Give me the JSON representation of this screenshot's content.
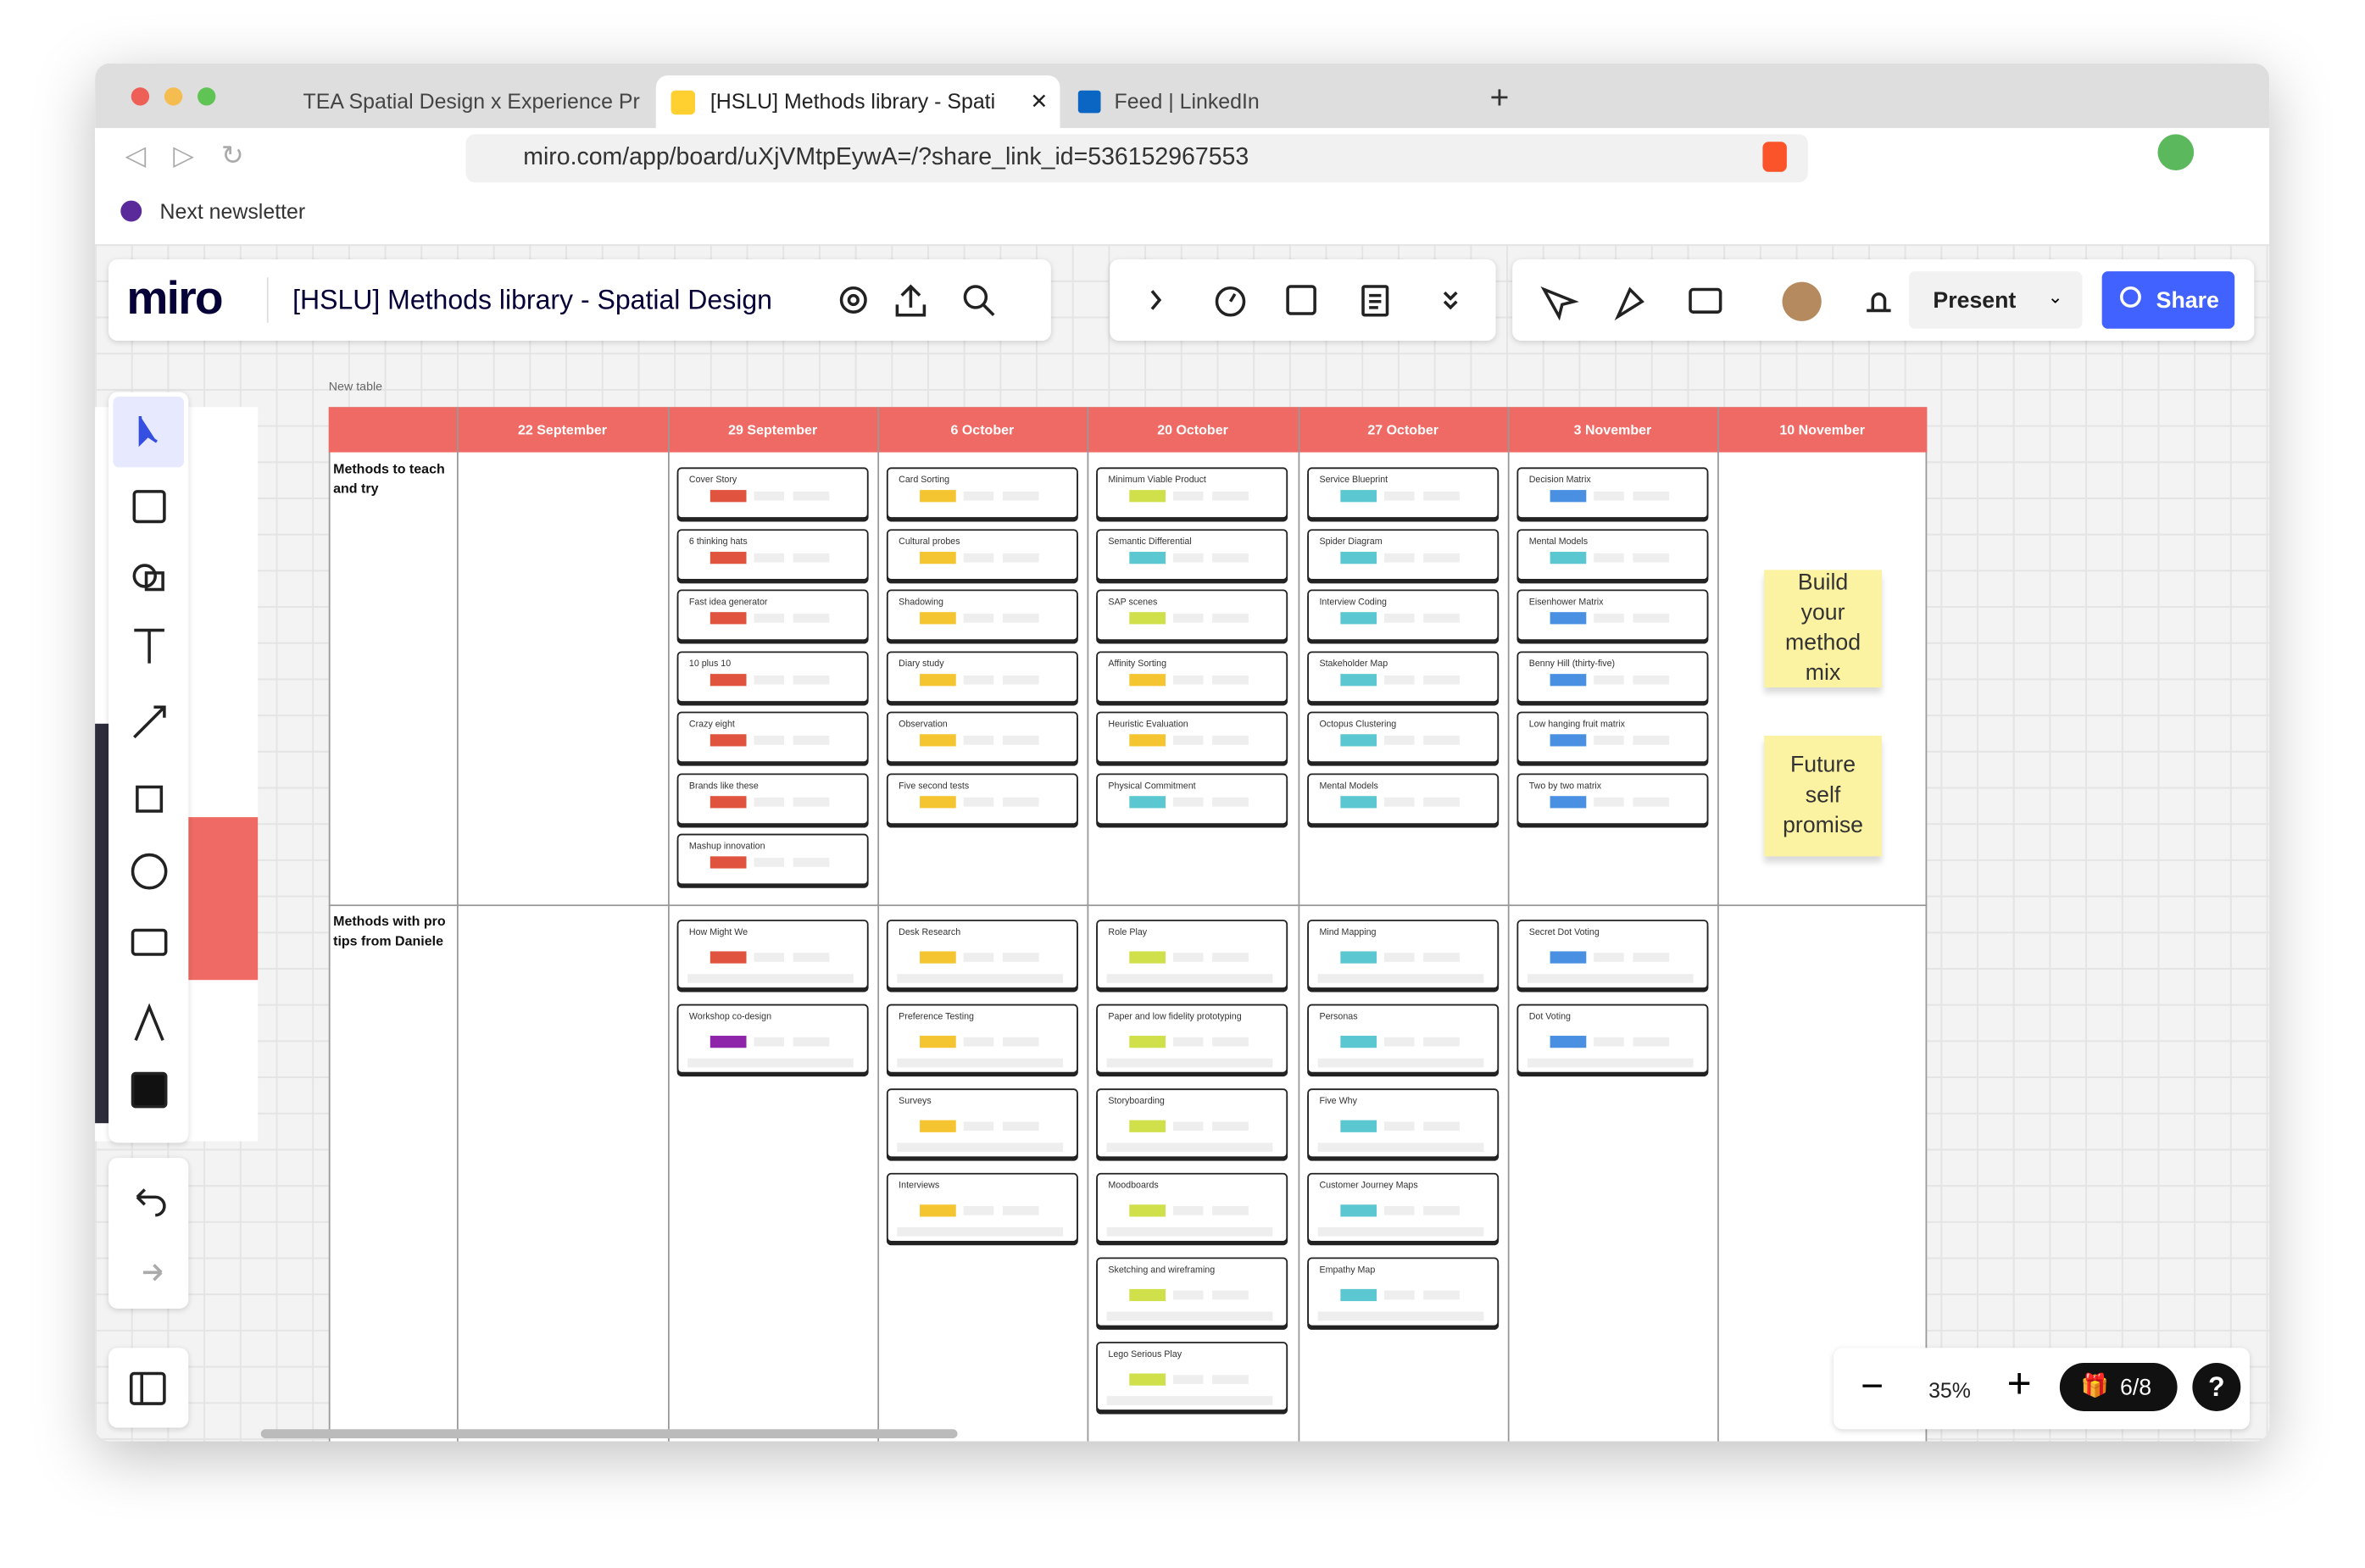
{
  "browser": {
    "tabs": [
      "TEA Spatial Design x Experience Pr",
      "[HSLU] Methods library - Spati",
      "Feed | LinkedIn"
    ],
    "url": "miro.com/app/board/uXjVMtpEywA=/?share_link_id=536152967553",
    "bookmark": "Next newsletter"
  },
  "toolbar": {
    "logo": "miro",
    "board_title": "[HSLU] Methods library - Spatial Design",
    "present": "Present",
    "share": "Share"
  },
  "table": {
    "caption": "New table",
    "columns": [
      "22 September",
      "29 September",
      "6 October",
      "20 October",
      "27 October",
      "3 November",
      "10 November"
    ],
    "rows": [
      {
        "label": "Methods to teach and try",
        "cells": [
          [],
          [
            {
              "label": "Cover Story",
              "color": "#e0543f"
            },
            {
              "label": "6 thinking hats",
              "color": "#e0543f"
            },
            {
              "label": "Fast idea generator",
              "color": "#e0543f"
            },
            {
              "label": "10 plus 10",
              "color": "#e0543f"
            },
            {
              "label": "Crazy eight",
              "color": "#e0543f"
            },
            {
              "label": "Brands like these",
              "color": "#e0543f"
            },
            {
              "label": "Mashup innovation",
              "color": "#e0543f"
            }
          ],
          [
            {
              "label": "Card Sorting",
              "color": "#f5c531"
            },
            {
              "label": "Cultural probes",
              "color": "#f5c531"
            },
            {
              "label": "Shadowing",
              "color": "#f5c531"
            },
            {
              "label": "Diary study",
              "color": "#f5c531"
            },
            {
              "label": "Observation",
              "color": "#f5c531"
            },
            {
              "label": "Five second tests",
              "color": "#f5c531"
            }
          ],
          [
            {
              "label": "Minimum Viable Product",
              "color": "#cfe04a"
            },
            {
              "label": "Semantic Differential",
              "color": "#5bc7d0"
            },
            {
              "label": "SAP scenes",
              "color": "#cfe04a"
            },
            {
              "label": "Affinity Sorting",
              "color": "#f5c531"
            },
            {
              "label": "Heuristic Evaluation",
              "color": "#f5c531"
            },
            {
              "label": "Physical Commitment",
              "color": "#5bc7d0"
            }
          ],
          [
            {
              "label": "Service Blueprint",
              "color": "#5bc7d0"
            },
            {
              "label": "Spider Diagram",
              "color": "#5bc7d0"
            },
            {
              "label": "Interview Coding",
              "color": "#5bc7d0"
            },
            {
              "label": "Stakeholder Map",
              "color": "#5bc7d0"
            },
            {
              "label": "Octopus Clustering",
              "color": "#5bc7d0"
            },
            {
              "label": "Mental Models",
              "color": "#5bc7d0"
            }
          ],
          [
            {
              "label": "Decision Matrix",
              "color": "#4a90e2"
            },
            {
              "label": "Mental Models",
              "color": "#5bc7d0"
            },
            {
              "label": "Eisenhower Matrix",
              "color": "#4a90e2"
            },
            {
              "label": "Benny Hill (thirty-five)",
              "color": "#4a90e2"
            },
            {
              "label": "Low hanging fruit matrix",
              "color": "#4a90e2"
            },
            {
              "label": "Two by two matrix",
              "color": "#4a90e2"
            }
          ],
          []
        ]
      },
      {
        "label": "Methods with pro tips from Daniele",
        "cells": [
          [],
          [
            {
              "label": "How Might We",
              "color": "#e0543f"
            },
            {
              "label": "Workshop co-design",
              "color": "#8e24aa"
            }
          ],
          [
            {
              "label": "Desk Research",
              "color": "#f5c531"
            },
            {
              "label": "Preference Testing",
              "color": "#f5c531"
            },
            {
              "label": "Surveys",
              "color": "#f5c531"
            },
            {
              "label": "Interviews",
              "color": "#f5c531"
            }
          ],
          [
            {
              "label": "Role Play",
              "color": "#cfe04a"
            },
            {
              "label": "Paper and low fidelity prototyping",
              "color": "#cfe04a"
            },
            {
              "label": "Storyboarding",
              "color": "#cfe04a"
            },
            {
              "label": "Moodboards",
              "color": "#cfe04a"
            },
            {
              "label": "Sketching and wireframing",
              "color": "#cfe04a"
            },
            {
              "label": "Lego Serious Play",
              "color": "#cfe04a"
            }
          ],
          [
            {
              "label": "Mind Mapping",
              "color": "#5bc7d0"
            },
            {
              "label": "Personas",
              "color": "#5bc7d0"
            },
            {
              "label": "Five Why",
              "color": "#5bc7d0"
            },
            {
              "label": "Customer Journey Maps",
              "color": "#5bc7d0"
            },
            {
              "label": "Empathy Map",
              "color": "#5bc7d0"
            }
          ],
          [
            {
              "label": "Secret Dot Voting",
              "color": "#4a90e2"
            },
            {
              "label": "Dot Voting",
              "color": "#4a90e2"
            }
          ],
          []
        ]
      }
    ]
  },
  "stickies": [
    "Build your method mix",
    "Future self promise"
  ],
  "zoom": {
    "level": "35%",
    "counter": "6/8"
  }
}
